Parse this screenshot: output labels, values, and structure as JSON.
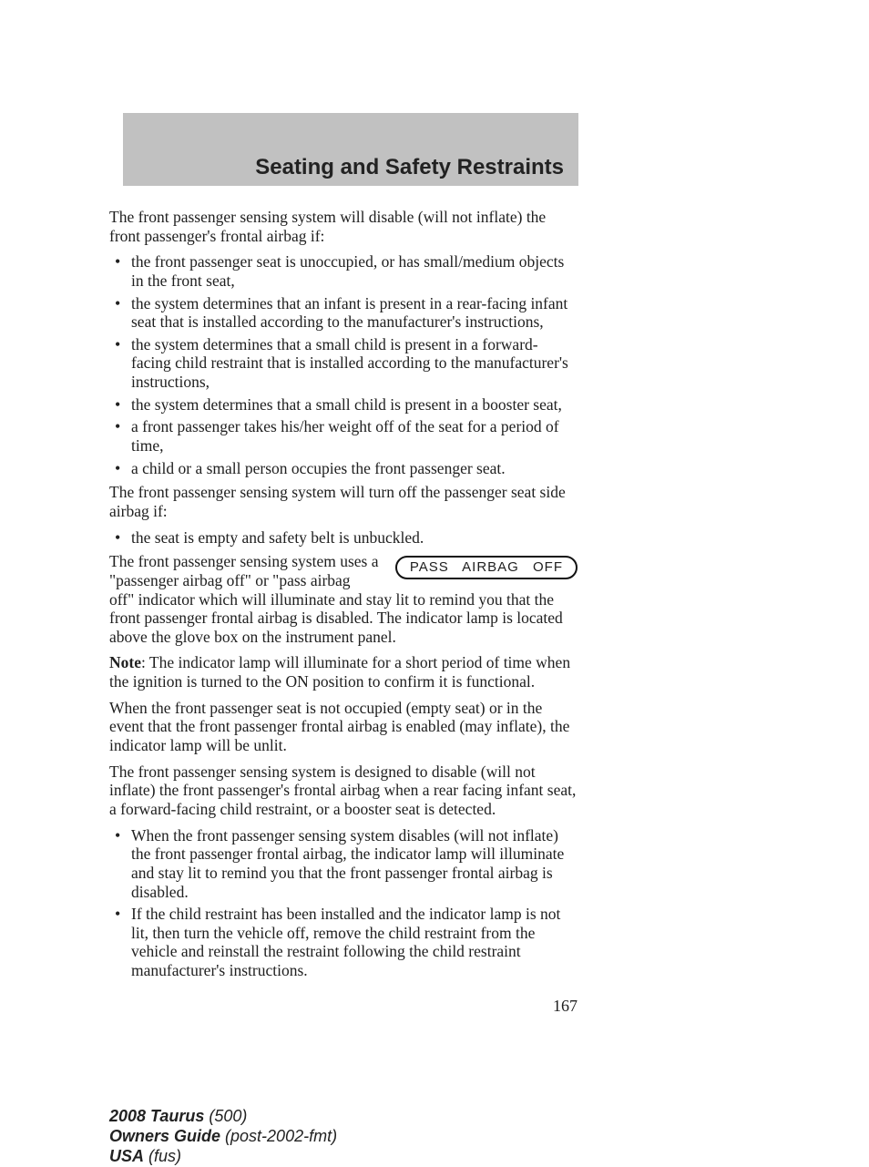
{
  "header": {
    "title": "Seating and Safety Restraints"
  },
  "intro1": "The front passenger sensing system will disable (will not inflate) the front passenger's frontal airbag if:",
  "list1": [
    "the front passenger seat is unoccupied, or has small/medium objects in the front seat,",
    "the system determines that an infant is present in a rear-facing infant seat that is installed according to the manufacturer's instructions,",
    "the system determines that a small child is present in a forward-facing child restraint that is installed according to the manufacturer's instructions,",
    "the system determines that a small child is present in a booster seat,",
    "a front passenger takes his/her weight off of the seat for a period of time,",
    "a child or a small person occupies the front passenger seat."
  ],
  "intro2": "The front passenger sensing system will turn off the passenger seat side airbag if:",
  "list2": [
    "the seat is empty and safety belt is unbuckled."
  ],
  "wrap_para": "The front passenger sensing system uses a \"passenger airbag off\" or \"pass airbag off\" indicator which will illuminate and stay lit to remind you that the front passenger frontal airbag is disabled. The indicator lamp is located above the glove box on the instrument panel.",
  "indicator_label": "PASS AIRBAG OFF",
  "note_label": "Note",
  "note_text": ": The indicator lamp will illuminate for a short period of time when the ignition is turned to the ON position to confirm it is functional.",
  "para3": "When the front passenger seat is not occupied (empty seat) or in the event that the front passenger frontal airbag is enabled (may inflate), the indicator lamp will be unlit.",
  "para4": "The front passenger sensing system is designed to disable (will not inflate) the front passenger's frontal airbag when a rear facing infant seat, a forward-facing child restraint, or a booster seat is detected.",
  "list3": [
    "When the front passenger sensing system disables (will not inflate) the front passenger frontal airbag, the indicator lamp will illuminate and stay lit to remind you that the front passenger frontal airbag is disabled.",
    "If the child restraint has been installed and the indicator lamp is not lit, then turn the vehicle off, remove the child restraint from the vehicle and reinstall the restraint following the child restraint manufacturer's instructions."
  ],
  "page_number": "167",
  "footer": {
    "model_bold": "2008 Taurus",
    "model_rest": " (500)",
    "line2_bold": "Owners Guide",
    "line2_rest": " (post-2002-fmt)",
    "line3_bold": "USA",
    "line3_rest": " (fus)"
  }
}
